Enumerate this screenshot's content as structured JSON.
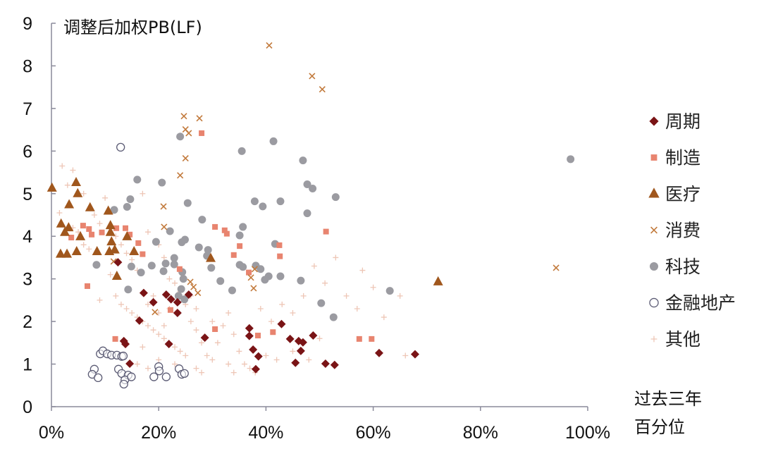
{
  "chart_data": {
    "type": "scatter",
    "title": "",
    "ylabel": "调整后加权PB(LF)",
    "xlabel_lines": [
      "过去三年",
      "百分位"
    ],
    "xlim": [
      0,
      100
    ],
    "ylim": [
      0,
      9
    ],
    "x_ticks": [
      "0%",
      "20%",
      "40%",
      "60%",
      "80%",
      "100%"
    ],
    "x_tick_values": [
      0,
      20,
      40,
      60,
      80,
      100
    ],
    "y_ticks": [
      "0",
      "1",
      "2",
      "3",
      "4",
      "5",
      "6",
      "7",
      "8",
      "9"
    ],
    "grid": false,
    "legend_position": "right",
    "series": [
      {
        "name": "周期",
        "marker": "diamond",
        "color": "#7a1416",
        "points": [
          [
            12.4,
            3.39
          ],
          [
            17.2,
            2.67
          ],
          [
            19.0,
            2.45
          ],
          [
            21.4,
            2.63
          ],
          [
            22.3,
            2.52
          ],
          [
            23.5,
            2.45
          ],
          [
            25.6,
            2.63
          ],
          [
            23.5,
            2.2
          ],
          [
            16.4,
            2.02
          ],
          [
            13.5,
            1.54
          ],
          [
            13.8,
            1.47
          ],
          [
            21.9,
            1.47
          ],
          [
            28.6,
            1.62
          ],
          [
            14.6,
            1.01
          ],
          [
            36.9,
            1.84
          ],
          [
            36.9,
            1.66
          ],
          [
            42.9,
            1.94
          ],
          [
            37.6,
            1.34
          ],
          [
            38.6,
            1.18
          ],
          [
            38.1,
            0.88
          ],
          [
            44.5,
            1.59
          ],
          [
            46.1,
            1.54
          ],
          [
            46.9,
            1.51
          ],
          [
            46.5,
            1.31
          ],
          [
            48.8,
            1.67
          ],
          [
            45.5,
            1.03
          ],
          [
            51.1,
            1.01
          ],
          [
            52.8,
            0.98
          ],
          [
            61.1,
            1.26
          ],
          [
            67.8,
            1.23
          ]
        ]
      },
      {
        "name": "制造",
        "marker": "square",
        "color": "#e8846f",
        "points": [
          [
            28.0,
            6.42
          ],
          [
            12.1,
            4.19
          ],
          [
            5.9,
            4.25
          ],
          [
            7.0,
            4.17
          ],
          [
            7.5,
            4.04
          ],
          [
            9.4,
            4.09
          ],
          [
            13.8,
            4.19
          ],
          [
            14.6,
            4.04
          ],
          [
            3.7,
            3.97
          ],
          [
            16.2,
            3.84
          ],
          [
            17.0,
            3.58
          ],
          [
            6.7,
            2.83
          ],
          [
            30.5,
            4.22
          ],
          [
            32.3,
            4.14
          ],
          [
            32.7,
            4.06
          ],
          [
            35.1,
            3.77
          ],
          [
            34.0,
            3.56
          ],
          [
            36.8,
            3.15
          ],
          [
            51.2,
            4.11
          ],
          [
            42.5,
            3.79
          ],
          [
            42.6,
            3.53
          ],
          [
            11.9,
            1.59
          ],
          [
            30.5,
            1.82
          ],
          [
            38.5,
            1.67
          ],
          [
            41.3,
            1.75
          ],
          [
            57.4,
            1.59
          ],
          [
            59.7,
            1.59
          ],
          [
            23.9,
            3.23
          ],
          [
            22.2,
            2.27
          ]
        ]
      },
      {
        "name": "医疗",
        "marker": "triangle",
        "color": "#a0571d",
        "points": [
          [
            0.1,
            5.13
          ],
          [
            4.6,
            5.26
          ],
          [
            4.9,
            5.0
          ],
          [
            3.3,
            4.74
          ],
          [
            7.2,
            4.67
          ],
          [
            10.6,
            4.59
          ],
          [
            1.8,
            4.29
          ],
          [
            3.2,
            4.2
          ],
          [
            2.5,
            4.09
          ],
          [
            5.4,
            3.99
          ],
          [
            11.0,
            4.25
          ],
          [
            11.0,
            4.09
          ],
          [
            11.2,
            3.87
          ],
          [
            11.8,
            3.68
          ],
          [
            10.8,
            3.64
          ],
          [
            14.1,
            3.99
          ],
          [
            15.4,
            3.64
          ],
          [
            8.5,
            3.64
          ],
          [
            4.7,
            3.64
          ],
          [
            1.7,
            3.58
          ],
          [
            2.9,
            3.58
          ],
          [
            12.2,
            3.06
          ],
          [
            29.7,
            3.48
          ],
          [
            72.1,
            2.93
          ]
        ]
      },
      {
        "name": "消费",
        "marker": "x",
        "color": "#c27a3c",
        "points": [
          [
            40.6,
            8.48
          ],
          [
            48.6,
            7.76
          ],
          [
            50.5,
            7.45
          ],
          [
            24.7,
            6.82
          ],
          [
            27.6,
            6.77
          ],
          [
            25.0,
            6.51
          ],
          [
            25.6,
            6.42
          ],
          [
            25.0,
            5.83
          ],
          [
            24.0,
            5.43
          ],
          [
            20.9,
            4.7
          ],
          [
            21.0,
            4.22
          ],
          [
            94.1,
            3.26
          ],
          [
            37.9,
            3.23
          ],
          [
            37.2,
            3.03
          ],
          [
            37.7,
            2.78
          ],
          [
            25.9,
            2.93
          ],
          [
            26.5,
            2.81
          ],
          [
            27.3,
            2.67
          ],
          [
            19.3,
            2.22
          ],
          [
            11.6,
            3.41
          ]
        ]
      },
      {
        "name": "科技",
        "marker": "circle",
        "color": "#9b9ba1",
        "points": [
          [
            96.8,
            5.81
          ],
          [
            24.0,
            6.34
          ],
          [
            35.5,
            6.0
          ],
          [
            41.4,
            6.23
          ],
          [
            46.9,
            5.78
          ],
          [
            47.7,
            5.22
          ],
          [
            48.7,
            5.12
          ],
          [
            53.0,
            4.92
          ],
          [
            37.9,
            4.82
          ],
          [
            39.4,
            4.7
          ],
          [
            42.7,
            4.82
          ],
          [
            47.7,
            4.54
          ],
          [
            35.7,
            4.22
          ],
          [
            35.1,
            4.02
          ],
          [
            41.7,
            3.82
          ],
          [
            16.0,
            5.33
          ],
          [
            20.6,
            5.26
          ],
          [
            25.4,
            4.78
          ],
          [
            14.7,
            4.87
          ],
          [
            14.1,
            4.69
          ],
          [
            11.7,
            4.62
          ],
          [
            28.1,
            4.39
          ],
          [
            22.1,
            4.12
          ],
          [
            19.5,
            3.87
          ],
          [
            24.9,
            3.92
          ],
          [
            24.3,
            3.86
          ],
          [
            27.5,
            3.74
          ],
          [
            29.2,
            3.68
          ],
          [
            29.0,
            3.54
          ],
          [
            35.1,
            3.33
          ],
          [
            35.7,
            3.28
          ],
          [
            38.1,
            3.31
          ],
          [
            39.0,
            3.23
          ],
          [
            40.5,
            3.06
          ],
          [
            39.8,
            2.98
          ],
          [
            42.7,
            3.06
          ],
          [
            46.5,
            2.96
          ],
          [
            50.3,
            2.43
          ],
          [
            52.6,
            2.1
          ],
          [
            63.1,
            2.72
          ],
          [
            8.4,
            3.33
          ],
          [
            14.9,
            3.29
          ],
          [
            16.7,
            3.15
          ],
          [
            18.7,
            3.31
          ],
          [
            21.3,
            3.36
          ],
          [
            22.9,
            3.49
          ],
          [
            22.9,
            3.34
          ],
          [
            20.9,
            3.18
          ],
          [
            24.4,
            3.16
          ],
          [
            24.6,
            3.0
          ],
          [
            14.3,
            2.75
          ],
          [
            29.8,
            3.26
          ],
          [
            31.5,
            2.95
          ],
          [
            33.7,
            2.73
          ],
          [
            24.2,
            2.76
          ],
          [
            23.7,
            2.6
          ],
          [
            24.8,
            2.52
          ]
        ]
      },
      {
        "name": "金融地产",
        "marker": "open-circle",
        "color": "#5b5b74",
        "points": [
          [
            12.9,
            6.09
          ],
          [
            9.1,
            1.24
          ],
          [
            9.6,
            1.31
          ],
          [
            10.4,
            1.24
          ],
          [
            11.2,
            1.21
          ],
          [
            12.2,
            1.21
          ],
          [
            13.1,
            1.18
          ],
          [
            13.4,
            1.19
          ],
          [
            8.0,
            0.88
          ],
          [
            7.6,
            0.76
          ],
          [
            8.7,
            0.68
          ],
          [
            12.5,
            0.88
          ],
          [
            13.1,
            0.78
          ],
          [
            14.3,
            0.74
          ],
          [
            13.7,
            0.63
          ],
          [
            13.5,
            0.53
          ],
          [
            14.9,
            0.7
          ],
          [
            20.0,
            0.94
          ],
          [
            20.1,
            0.84
          ],
          [
            19.1,
            0.7
          ],
          [
            21.4,
            0.7
          ],
          [
            23.8,
            0.89
          ],
          [
            24.3,
            0.76
          ],
          [
            24.8,
            0.78
          ]
        ]
      },
      {
        "name": "其他",
        "marker": "plus",
        "color": "#eec6b6",
        "points": [
          [
            2,
            5.65
          ],
          [
            4,
            5.55
          ],
          [
            3,
            5.2
          ],
          [
            1.5,
            4.55
          ],
          [
            5,
            4.1
          ],
          [
            8,
            4.5
          ],
          [
            9,
            4.3
          ],
          [
            10,
            4.9
          ],
          [
            12,
            4.0
          ],
          [
            13,
            3.8
          ],
          [
            14,
            3.6
          ],
          [
            15,
            3.45
          ],
          [
            16,
            3.2
          ],
          [
            17,
            5.0
          ],
          [
            18,
            4.1
          ],
          [
            20,
            3.8
          ],
          [
            21,
            3.5
          ],
          [
            22,
            3.0
          ],
          [
            23,
            2.9
          ],
          [
            24,
            2.7
          ],
          [
            12,
            2.6
          ],
          [
            13,
            2.4
          ],
          [
            14,
            2.3
          ],
          [
            15,
            2.2
          ],
          [
            16,
            2.1
          ],
          [
            17,
            2.0
          ],
          [
            18,
            1.9
          ],
          [
            19,
            1.8
          ],
          [
            20,
            1.7
          ],
          [
            21,
            1.6
          ],
          [
            22,
            1.5
          ],
          [
            23,
            1.4
          ],
          [
            24,
            1.3
          ],
          [
            25,
            1.2
          ],
          [
            26,
            2.0
          ],
          [
            27,
            1.8
          ],
          [
            28,
            1.5
          ],
          [
            29,
            1.2
          ],
          [
            30,
            1.1
          ],
          [
            31,
            1.5
          ],
          [
            32,
            1.9
          ],
          [
            33,
            2.2
          ],
          [
            34,
            1.7
          ],
          [
            35,
            1.3
          ],
          [
            36,
            1.0
          ],
          [
            37,
            0.9
          ],
          [
            38,
            0.8
          ],
          [
            18,
            2.4
          ],
          [
            19,
            2.6
          ],
          [
            20,
            2.2
          ],
          [
            21,
            1.9
          ],
          [
            22,
            2.3
          ],
          [
            25,
            2.4
          ],
          [
            26,
            2.6
          ],
          [
            27,
            2.3
          ],
          [
            30,
            2.0
          ],
          [
            33,
            1.0
          ],
          [
            34,
            0.8
          ],
          [
            39,
            2.3
          ],
          [
            41,
            2.0
          ],
          [
            43,
            2.4
          ],
          [
            45,
            2.2
          ],
          [
            47,
            2.6
          ],
          [
            49,
            3.3
          ],
          [
            51,
            2.9
          ],
          [
            53,
            3.5
          ],
          [
            55,
            2.6
          ],
          [
            57,
            2.3
          ],
          [
            58,
            3.2
          ],
          [
            60,
            2.8
          ],
          [
            62,
            2.1
          ],
          [
            65,
            2.6
          ],
          [
            66,
            1.2
          ],
          [
            45,
            1.3
          ],
          [
            48,
            1.1
          ],
          [
            50,
            1.6
          ],
          [
            40,
            1.2
          ],
          [
            42,
            1.1
          ],
          [
            17,
            1.4
          ],
          [
            16,
            1.0
          ],
          [
            18,
            0.9
          ],
          [
            20,
            1.1
          ],
          [
            27,
            0.9
          ],
          [
            28,
            0.8
          ],
          [
            23,
            1.0
          ],
          [
            9,
            2.5
          ],
          [
            11,
            3.1
          ],
          [
            7,
            3.7
          ],
          [
            6,
            3.8
          ],
          [
            4,
            4.2
          ],
          [
            6,
            5.0
          ]
        ]
      }
    ]
  }
}
